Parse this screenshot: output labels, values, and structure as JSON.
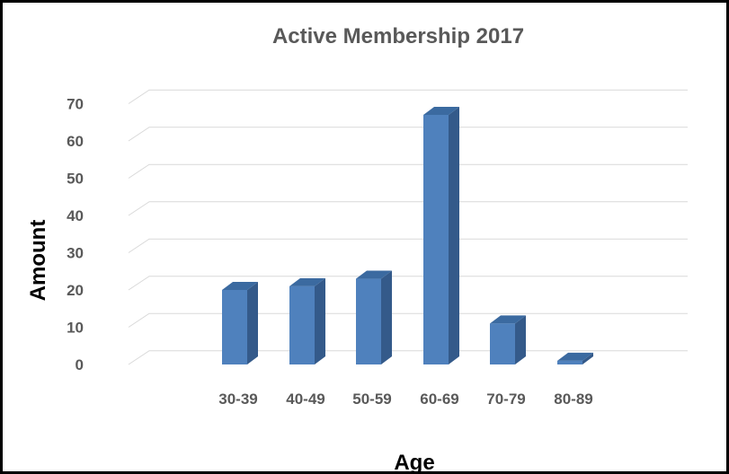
{
  "chart_data": {
    "type": "bar",
    "title": "Active Membership 2017",
    "xlabel": "Age",
    "ylabel": "Amount",
    "categories": [
      "30-39",
      "40-49",
      "50-59",
      "60-69",
      "70-79",
      "80-89"
    ],
    "values": [
      20,
      21,
      23,
      67,
      11,
      1
    ],
    "yticks": [
      "0",
      "10",
      "20",
      "30",
      "40",
      "50",
      "60",
      "70"
    ],
    "ylim": [
      0,
      70
    ],
    "grid": true,
    "legend": "none",
    "style": "3d-column",
    "colors": {
      "bar_front": "#4f81bd",
      "bar_side": "#345a8a",
      "bar_top": "#3b6aa0",
      "grid": "#d9d9d9",
      "frame": "#000000"
    }
  }
}
